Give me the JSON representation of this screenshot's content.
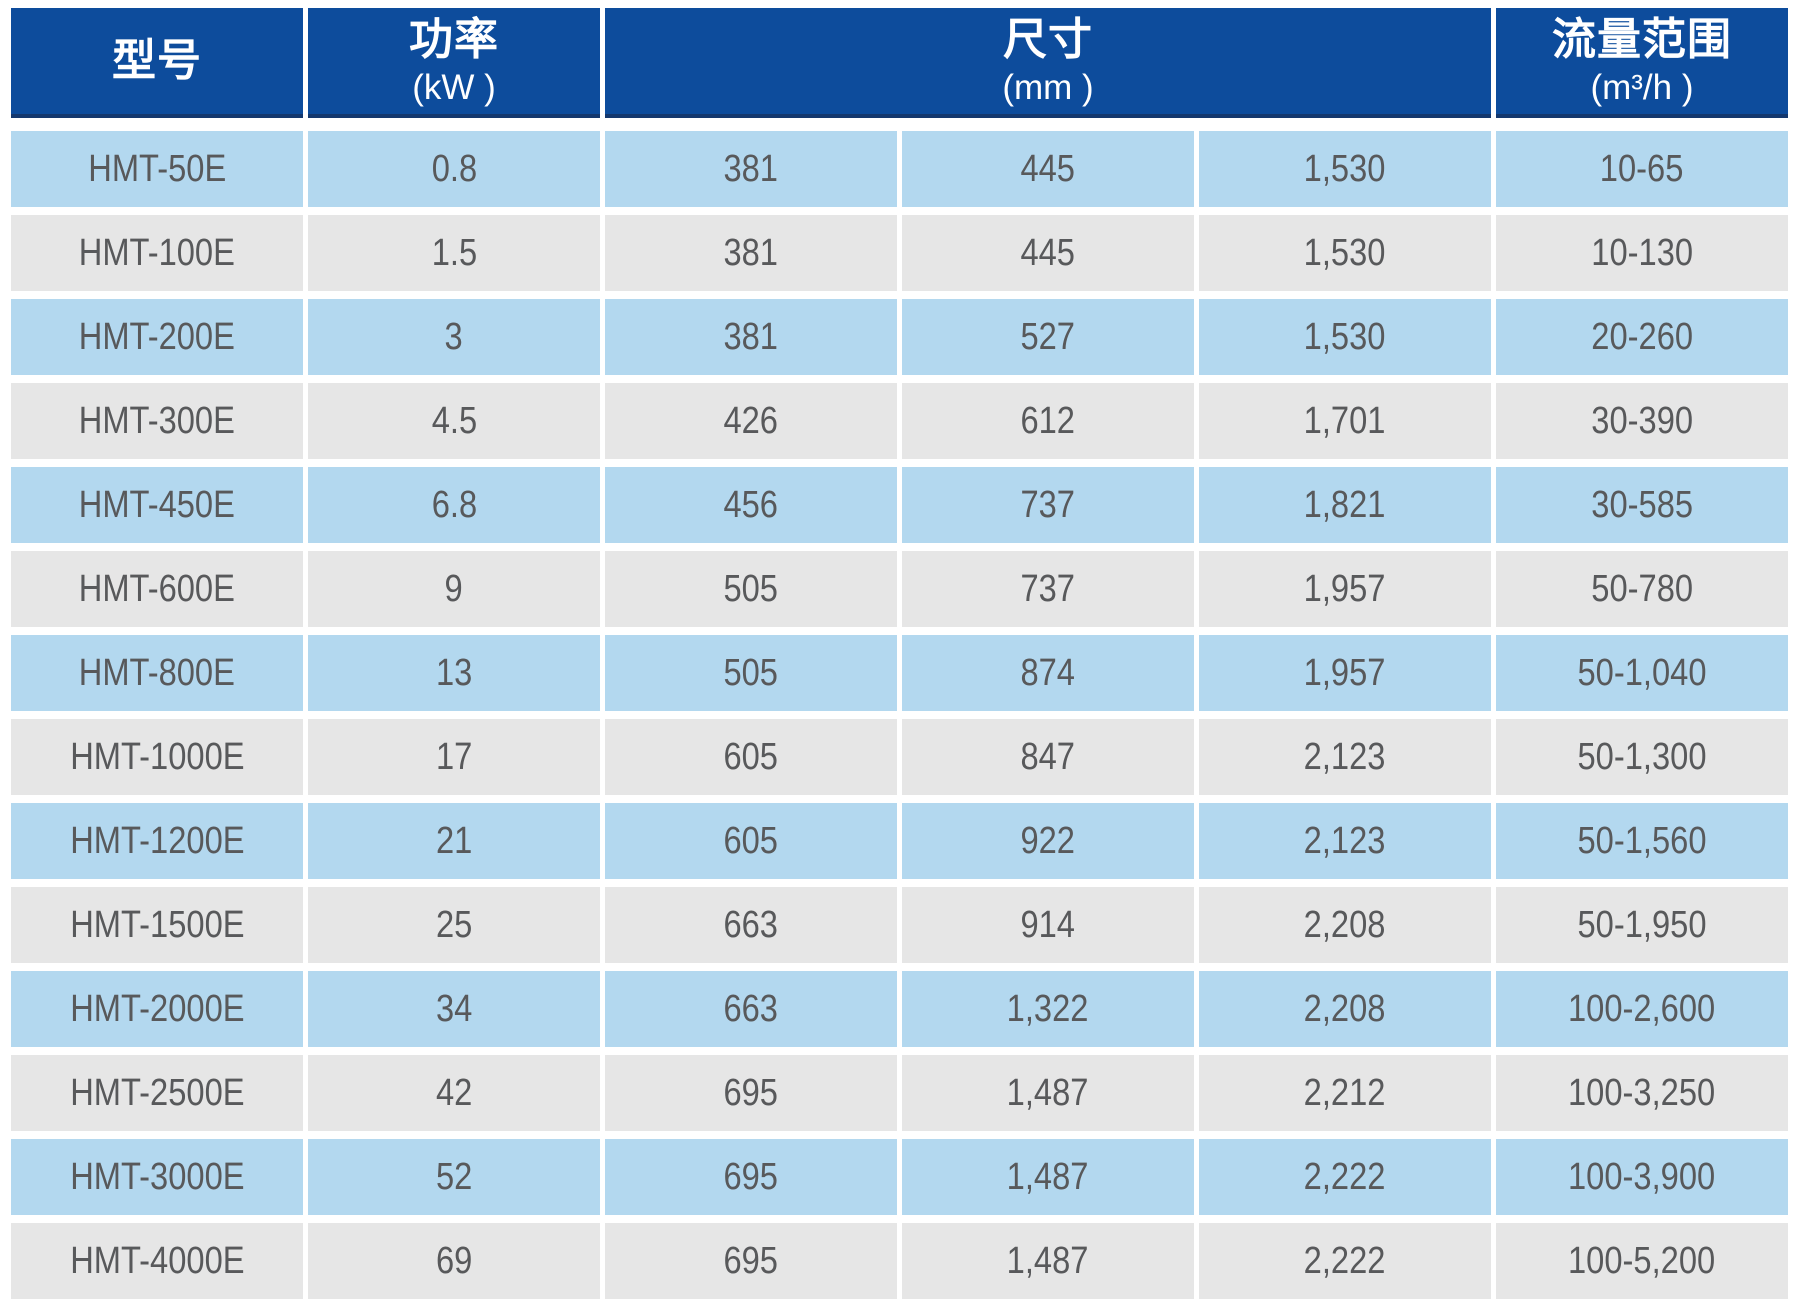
{
  "colors": {
    "header_bg": "#0d4c9c",
    "header_border": "#14386e",
    "header_text": "#ffffff",
    "row_blue": "#b3d8ef",
    "row_gray": "#e6e6e6",
    "cell_text": "#58595b"
  },
  "table": {
    "header_groups": [
      {
        "title": "型号",
        "unit": "",
        "span": 1
      },
      {
        "title": "功率",
        "unit": "(kW )",
        "span": 1
      },
      {
        "title": "尺寸",
        "unit": "(mm )",
        "span": 3
      },
      {
        "title": "流量范围",
        "unit": "(m³/h )",
        "span": 1
      }
    ],
    "column_keys": [
      "model",
      "power-kw",
      "dim-width",
      "dim-depth",
      "dim-height",
      "flow-range"
    ],
    "rows": [
      [
        "HMT-50E",
        "0.8",
        "381",
        "445",
        "1,530",
        "10-65"
      ],
      [
        "HMT-100E",
        "1.5",
        "381",
        "445",
        "1,530",
        "10-130"
      ],
      [
        "HMT-200E",
        "3",
        "381",
        "527",
        "1,530",
        "20-260"
      ],
      [
        "HMT-300E",
        "4.5",
        "426",
        "612",
        "1,701",
        "30-390"
      ],
      [
        "HMT-450E",
        "6.8",
        "456",
        "737",
        "1,821",
        "30-585"
      ],
      [
        "HMT-600E",
        "9",
        "505",
        "737",
        "1,957",
        "50-780"
      ],
      [
        "HMT-800E",
        "13",
        "505",
        "874",
        "1,957",
        "50-1,040"
      ],
      [
        "HMT-1000E",
        "17",
        "605",
        "847",
        "2,123",
        "50-1,300"
      ],
      [
        "HMT-1200E",
        "21",
        "605",
        "922",
        "2,123",
        "50-1,560"
      ],
      [
        "HMT-1500E",
        "25",
        "663",
        "914",
        "2,208",
        "50-1,950"
      ],
      [
        "HMT-2000E",
        "34",
        "663",
        "1,322",
        "2,208",
        "100-2,600"
      ],
      [
        "HMT-2500E",
        "42",
        "695",
        "1,487",
        "2,212",
        "100-3,250"
      ],
      [
        "HMT-3000E",
        "52",
        "695",
        "1,487",
        "2,222",
        "100-3,900"
      ],
      [
        "HMT-4000E",
        "69",
        "695",
        "1,487",
        "2,222",
        "100-5,200"
      ]
    ]
  }
}
